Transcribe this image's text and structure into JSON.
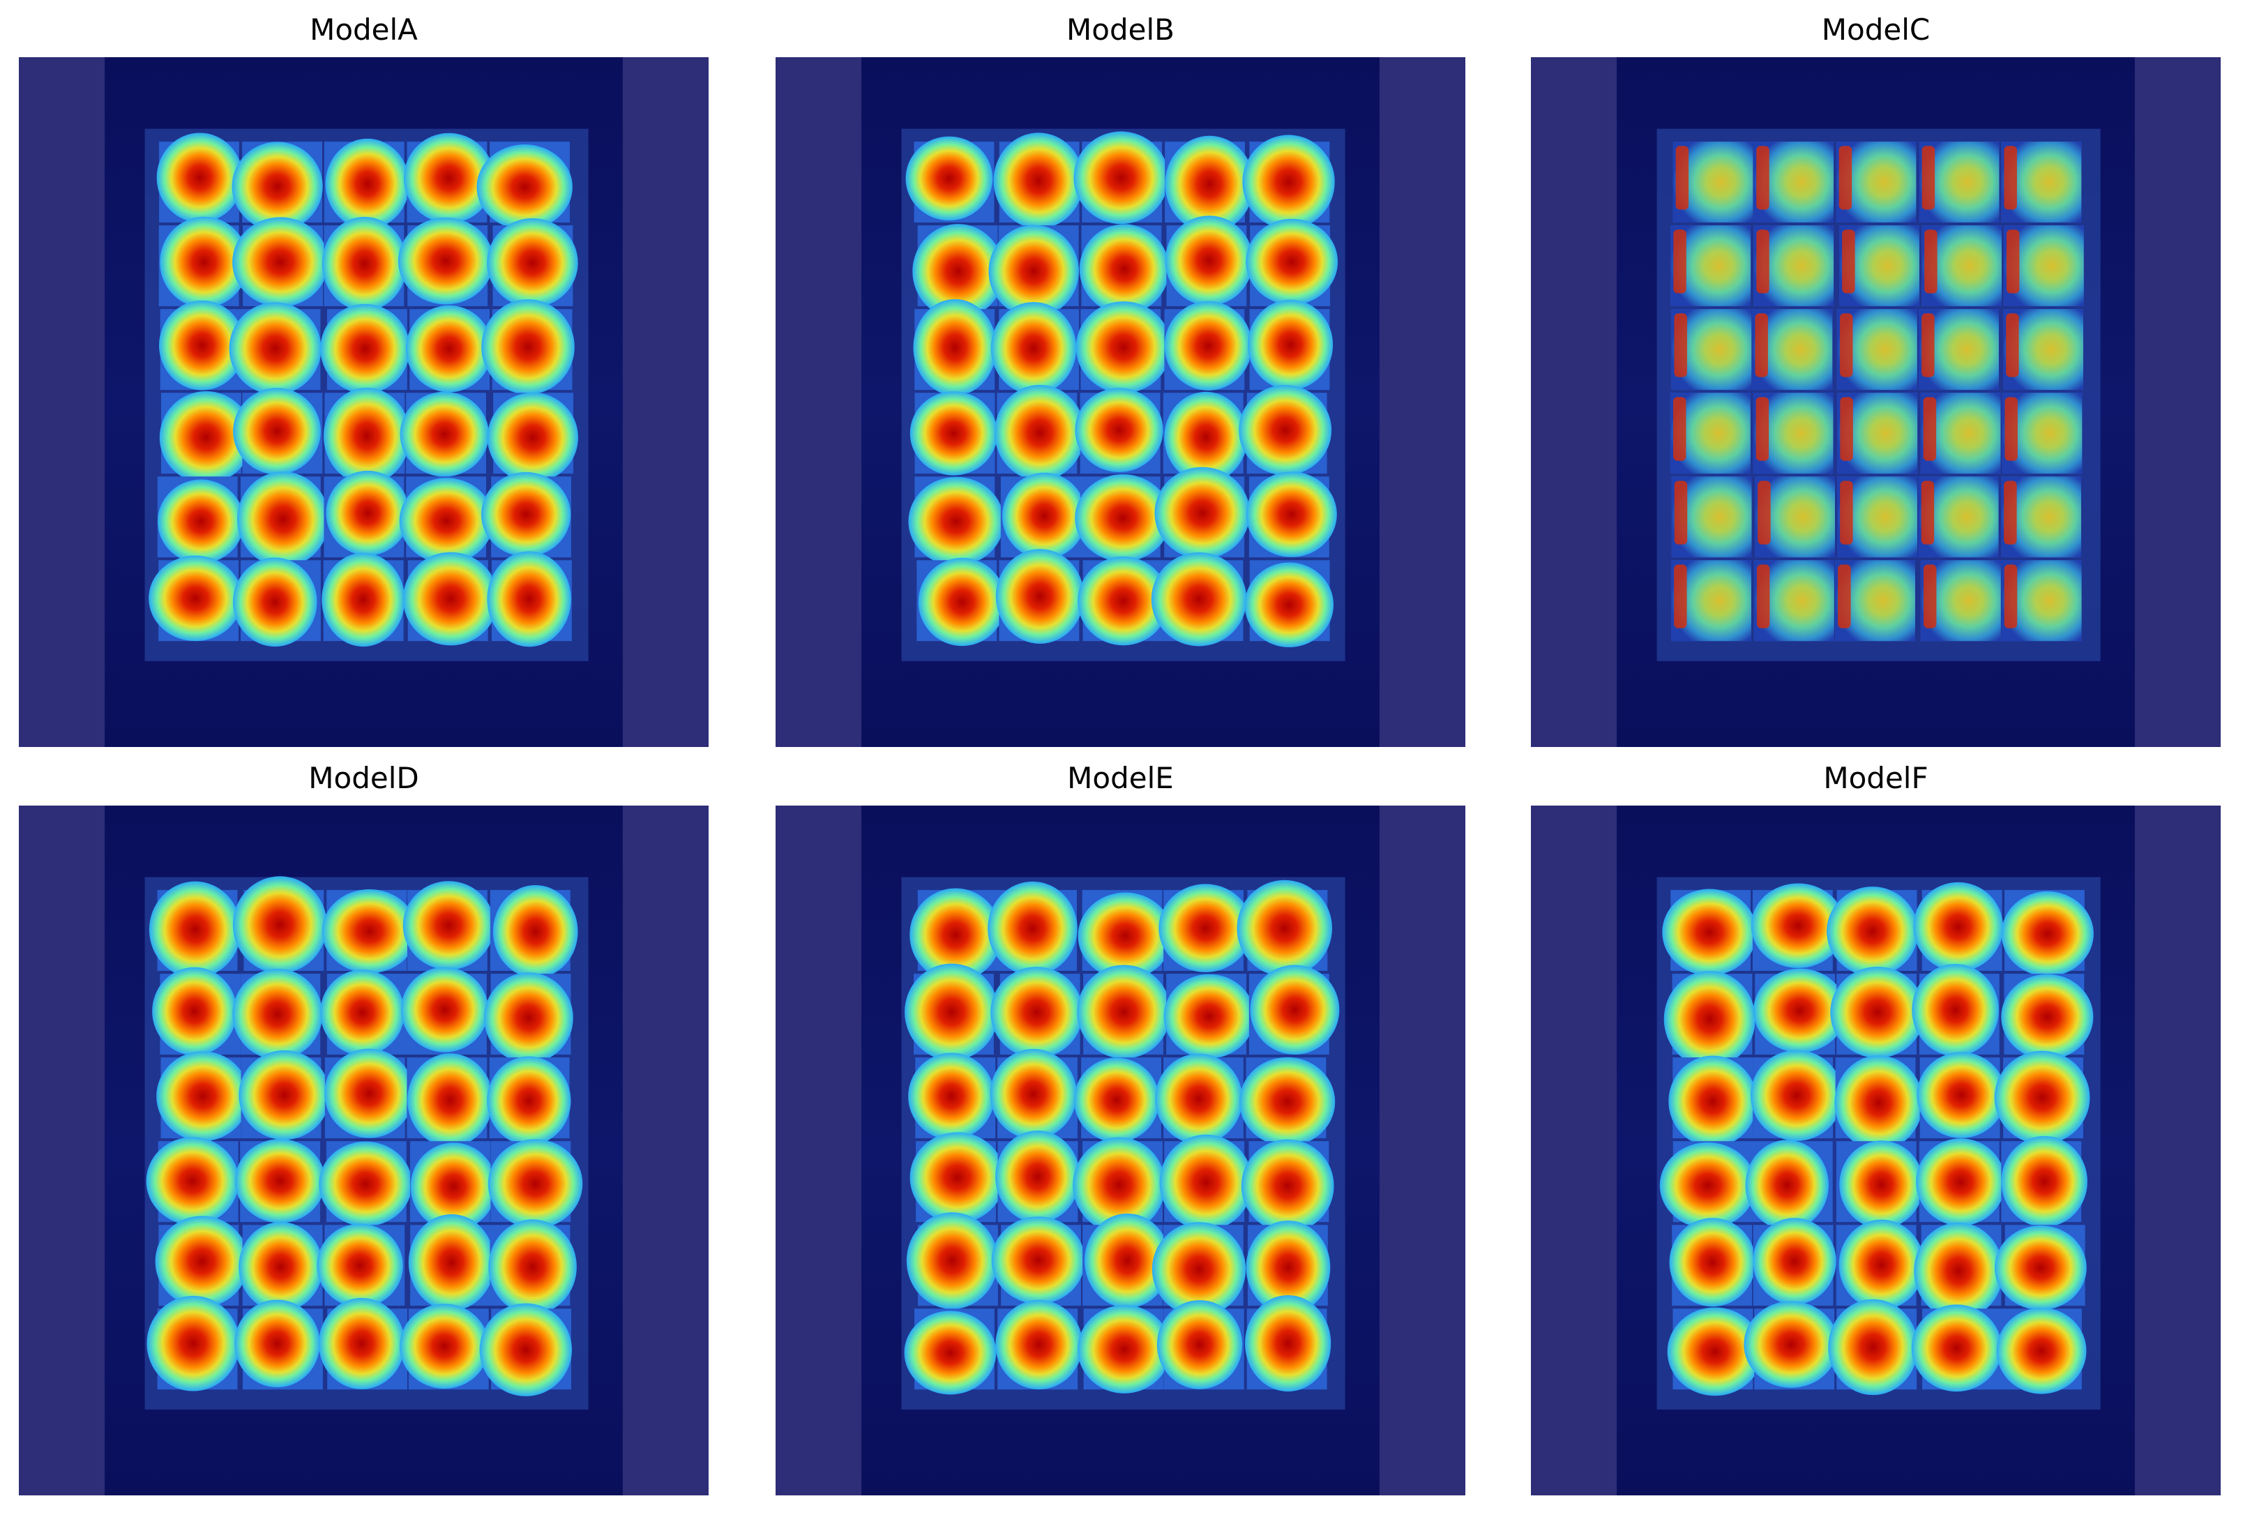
{
  "panels": [
    {
      "title": "ModelA"
    },
    {
      "title": "ModelB"
    },
    {
      "title": "ModelC"
    },
    {
      "title": "ModelD"
    },
    {
      "title": "ModelE"
    },
    {
      "title": "ModelF"
    }
  ]
}
